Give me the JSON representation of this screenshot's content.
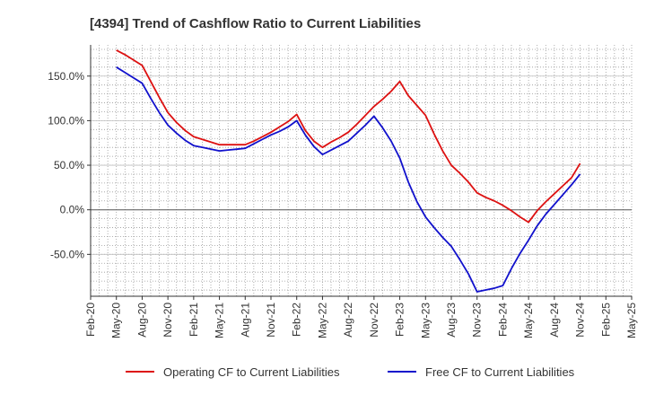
{
  "chart_data": {
    "type": "line",
    "title": "[4394]  Trend of Cashflow Ratio to Current Liabilities",
    "xlabel": "",
    "ylabel": "",
    "x_ticks": [
      "Feb-20",
      "May-20",
      "Aug-20",
      "Nov-20",
      "Feb-21",
      "May-21",
      "Aug-21",
      "Nov-21",
      "Feb-22",
      "May-22",
      "Aug-22",
      "Nov-22",
      "Feb-23",
      "May-23",
      "Aug-23",
      "Nov-23",
      "Feb-24",
      "May-24",
      "Aug-24",
      "Nov-24",
      "Feb-25",
      "May-25"
    ],
    "y_ticks": [
      {
        "value": 150,
        "label": "150.0%"
      },
      {
        "value": 100,
        "label": "100.0%"
      },
      {
        "value": 50,
        "label": "50.0%"
      },
      {
        "value": 0,
        "label": "0.0%"
      },
      {
        "value": -50,
        "label": "-50.0%"
      }
    ],
    "ylim": [
      -97,
      185
    ],
    "grid": true,
    "legend_position": "bottom",
    "series": [
      {
        "name": "Operating CF to Current Liabilities",
        "color": "#dd1111",
        "points": [
          [
            "May-20",
            179
          ],
          [
            "Jun-20",
            174
          ],
          [
            "Jul-20",
            168
          ],
          [
            "Aug-20",
            162
          ],
          [
            "Sep-20",
            144
          ],
          [
            "Oct-20",
            126
          ],
          [
            "Nov-20",
            109
          ],
          [
            "Dec-20",
            98
          ],
          [
            "Jan-21",
            89
          ],
          [
            "Feb-21",
            82
          ],
          [
            "Mar-21",
            79
          ],
          [
            "Apr-21",
            76
          ],
          [
            "May-21",
            73
          ],
          [
            "Jun-21",
            73
          ],
          [
            "Jul-21",
            73
          ],
          [
            "Aug-21",
            73
          ],
          [
            "Sep-21",
            77
          ],
          [
            "Oct-21",
            82
          ],
          [
            "Nov-21",
            87
          ],
          [
            "Dec-21",
            93
          ],
          [
            "Jan-22",
            99
          ],
          [
            "Feb-22",
            107
          ],
          [
            "Mar-22",
            89
          ],
          [
            "Apr-22",
            77
          ],
          [
            "May-22",
            70
          ],
          [
            "Jun-22",
            76
          ],
          [
            "Jul-22",
            81
          ],
          [
            "Aug-22",
            87
          ],
          [
            "Sep-22",
            96
          ],
          [
            "Oct-22",
            106
          ],
          [
            "Nov-22",
            116
          ],
          [
            "Dec-22",
            124
          ],
          [
            "Jan-23",
            133
          ],
          [
            "Feb-23",
            144
          ],
          [
            "Mar-23",
            128
          ],
          [
            "Apr-23",
            117
          ],
          [
            "May-23",
            106
          ],
          [
            "Jun-23",
            85
          ],
          [
            "Jul-23",
            66
          ],
          [
            "Aug-23",
            50
          ],
          [
            "Sep-23",
            41
          ],
          [
            "Oct-23",
            31
          ],
          [
            "Nov-23",
            19
          ],
          [
            "Dec-23",
            14
          ],
          [
            "Jan-24",
            10
          ],
          [
            "Feb-24",
            5
          ],
          [
            "Mar-24",
            -1
          ],
          [
            "Apr-24",
            -8
          ],
          [
            "May-24",
            -14
          ],
          [
            "Jun-24",
            -1
          ],
          [
            "Jul-24",
            9
          ],
          [
            "Aug-24",
            18
          ],
          [
            "Sep-24",
            27
          ],
          [
            "Oct-24",
            36
          ],
          [
            "Nov-24",
            52
          ]
        ]
      },
      {
        "name": "Free CF to Current Liabilities",
        "color": "#1111cc",
        "points": [
          [
            "May-20",
            160
          ],
          [
            "Jun-20",
            154
          ],
          [
            "Jul-20",
            148
          ],
          [
            "Aug-20",
            142
          ],
          [
            "Sep-20",
            125
          ],
          [
            "Oct-20",
            109
          ],
          [
            "Nov-20",
            95
          ],
          [
            "Dec-20",
            86
          ],
          [
            "Jan-21",
            78
          ],
          [
            "Feb-21",
            72
          ],
          [
            "Mar-21",
            70
          ],
          [
            "Apr-21",
            68
          ],
          [
            "May-21",
            66
          ],
          [
            "Jun-21",
            67
          ],
          [
            "Jul-21",
            68
          ],
          [
            "Aug-21",
            69
          ],
          [
            "Sep-21",
            74
          ],
          [
            "Oct-21",
            79
          ],
          [
            "Nov-21",
            84
          ],
          [
            "Dec-21",
            88
          ],
          [
            "Jan-22",
            93
          ],
          [
            "Feb-22",
            100
          ],
          [
            "Mar-22",
            84
          ],
          [
            "Apr-22",
            71
          ],
          [
            "May-22",
            62
          ],
          [
            "Jun-22",
            67
          ],
          [
            "Jul-22",
            72
          ],
          [
            "Aug-22",
            77
          ],
          [
            "Sep-22",
            86
          ],
          [
            "Oct-22",
            95
          ],
          [
            "Nov-22",
            105
          ],
          [
            "Dec-22",
            92
          ],
          [
            "Jan-23",
            77
          ],
          [
            "Feb-23",
            58
          ],
          [
            "Mar-23",
            31
          ],
          [
            "Apr-23",
            9
          ],
          [
            "May-23",
            -8
          ],
          [
            "Jun-23",
            -20
          ],
          [
            "Jul-23",
            -31
          ],
          [
            "Aug-23",
            -41
          ],
          [
            "Sep-23",
            -56
          ],
          [
            "Oct-23",
            -72
          ],
          [
            "Nov-23",
            -92
          ],
          [
            "Dec-23",
            -90
          ],
          [
            "Jan-24",
            -88
          ],
          [
            "Feb-24",
            -85
          ],
          [
            "Mar-24",
            -66
          ],
          [
            "Apr-24",
            -49
          ],
          [
            "May-24",
            -34
          ],
          [
            "Jun-24",
            -18
          ],
          [
            "Jul-24",
            -5
          ],
          [
            "Aug-24",
            6
          ],
          [
            "Sep-24",
            17
          ],
          [
            "Oct-24",
            28
          ],
          [
            "Nov-24",
            40
          ]
        ]
      }
    ]
  }
}
